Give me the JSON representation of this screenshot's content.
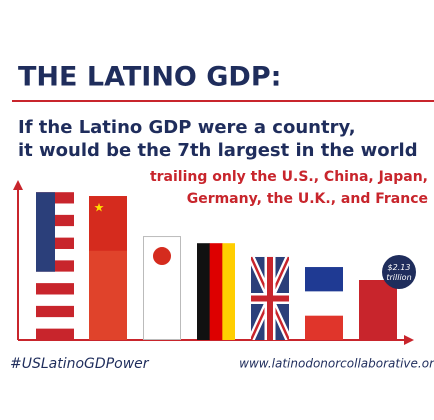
{
  "chart_data": {
    "type": "flag-bar",
    "title": "THE LATINO GDP:",
    "subtitle": [
      "If the Latino GDP were a country,",
      "it would be the 7th largest in the world"
    ],
    "annotation": [
      "trailing only the U.S., China, Japan,",
      "Germany, the U.K., and France"
    ],
    "values": [
      5.25,
      5.11,
      3.69,
      3.44,
      2.95,
      2.59,
      2.13
    ],
    "value_labels": [
      null,
      null,
      null,
      null,
      null,
      null,
      "$2.13 trillion"
    ],
    "hashtag": "#USLatinoGDPower",
    "url": "www.latinodonorcollaborative.or"
  }
}
